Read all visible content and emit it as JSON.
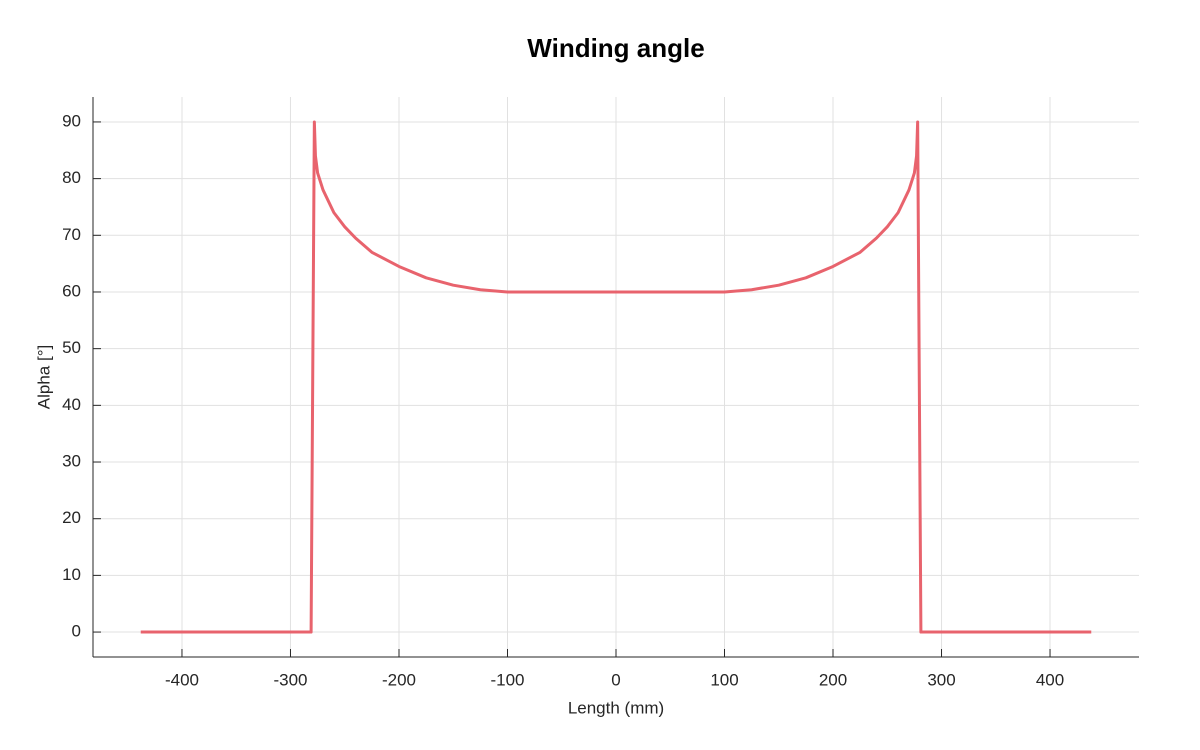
{
  "chart_data": {
    "type": "line",
    "title": "Winding angle",
    "x_label": "Length (mm)",
    "y_label": "Alpha [°]",
    "x": [
      -438,
      -281,
      -278,
      -277,
      -275,
      -270,
      -260,
      -250,
      -240,
      -225,
      -200,
      -175,
      -150,
      -125,
      -100,
      0,
      100,
      125,
      150,
      175,
      200,
      225,
      240,
      250,
      260,
      270,
      275,
      277,
      278,
      281,
      438
    ],
    "values": [
      0,
      0,
      90,
      84,
      81,
      78,
      74,
      71.5,
      69.5,
      67,
      64.5,
      62.5,
      61.2,
      60.4,
      60,
      60,
      60,
      60.4,
      61.2,
      62.5,
      64.5,
      67,
      69.5,
      71.5,
      74,
      78,
      81,
      84,
      90,
      0,
      0
    ],
    "color": "#e8636d",
    "xlim": [
      -482,
      482
    ],
    "ylim": [
      -4.4,
      94.4
    ],
    "xticks": [
      -400,
      -300,
      -200,
      -100,
      0,
      100,
      200,
      300,
      400
    ],
    "yticks": [
      0,
      10,
      20,
      30,
      40,
      50,
      60,
      70,
      80,
      90
    ],
    "grid": true
  }
}
